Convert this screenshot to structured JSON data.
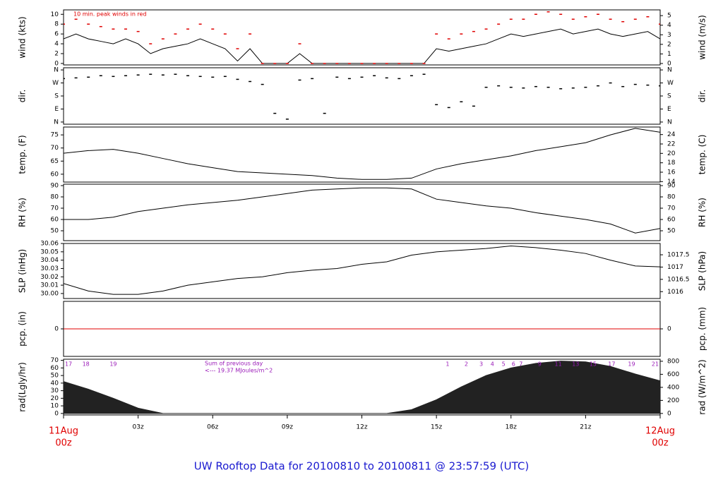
{
  "title": "UW Rooftop Data for 20100810  to  20100811 @ 23:57:59  (UTC)",
  "chart_data": [
    {
      "type": "line",
      "y_label": "wind (kts)",
      "y2_label": "wind (m/s)",
      "annotation": "10 min. peak winds in red",
      "xlim": [
        0,
        24
      ],
      "ylim": [
        -0.3,
        10.9
      ],
      "yticks": [
        0,
        2,
        4,
        6,
        8,
        10
      ],
      "y2lim": [
        -0.15,
        5.6
      ],
      "y2ticks": [
        0,
        1,
        2,
        3,
        4,
        5
      ],
      "x": [
        0,
        0.5,
        1,
        1.5,
        2,
        2.5,
        3,
        3.5,
        4,
        4.5,
        5,
        5.5,
        6,
        6.5,
        7,
        7.5,
        8,
        8.5,
        9,
        9.5,
        10,
        10.5,
        11,
        11.5,
        12,
        12.5,
        13,
        13.5,
        14,
        14.5,
        15,
        15.5,
        16,
        16.5,
        17,
        17.5,
        18,
        18.5,
        19,
        19.5,
        20,
        20.5,
        21,
        21.5,
        22,
        22.5,
        23,
        23.5,
        24
      ],
      "series": [
        {
          "color": "#000000",
          "mark": "line",
          "values": [
            5,
            6,
            5,
            4.5,
            4,
            5,
            4,
            2,
            3,
            3.5,
            4,
            5,
            4,
            3,
            0.5,
            3,
            0,
            0,
            0,
            2,
            0,
            0,
            0,
            0,
            0,
            0,
            0,
            0,
            0,
            0,
            3,
            2.5,
            3,
            3.5,
            4,
            5,
            6,
            5.5,
            6,
            6.5,
            7,
            6,
            6.5,
            7,
            6,
            5.5,
            6,
            6.5,
            5
          ]
        },
        {
          "color": "#e00000",
          "mark": "dash",
          "values": [
            8,
            9,
            8,
            7.5,
            7,
            7,
            6.5,
            4,
            5,
            6,
            7,
            8,
            7,
            6,
            3,
            6,
            0,
            0,
            0,
            4,
            0,
            0,
            0,
            0,
            0,
            0,
            0,
            0,
            0,
            0,
            6,
            5,
            6,
            6.5,
            7,
            8,
            9,
            9,
            10,
            10.5,
            10,
            9,
            9.5,
            10,
            9,
            8.5,
            9,
            9.5,
            8
          ]
        }
      ]
    },
    {
      "type": "scatter",
      "y_label": "dir.",
      "y2_label": "dir.",
      "xlim": [
        0,
        24
      ],
      "ylim": [
        -15,
        375
      ],
      "yticks": [
        {
          "value": 0,
          "label": "N"
        },
        {
          "value": 90,
          "label": "E"
        },
        {
          "value": 180,
          "label": "S"
        },
        {
          "value": 270,
          "label": "W"
        },
        {
          "value": 360,
          "label": "N"
        }
      ],
      "y2lim": [
        -15,
        375
      ],
      "y2ticks": [
        {
          "value": 0,
          "label": "N"
        },
        {
          "value": 90,
          "label": "E"
        },
        {
          "value": 180,
          "label": "S"
        },
        {
          "value": 270,
          "label": "W"
        },
        {
          "value": 360,
          "label": "N"
        }
      ],
      "x": [
        0,
        0.5,
        1,
        1.5,
        2,
        2.5,
        3,
        3.5,
        4,
        4.5,
        5,
        5.5,
        6,
        6.5,
        7,
        7.5,
        8,
        8.5,
        9,
        9.5,
        10,
        10.5,
        11,
        11.5,
        12,
        12.5,
        13,
        13.5,
        14,
        14.5,
        15,
        15.5,
        16,
        16.5,
        17,
        17.5,
        18,
        18.5,
        19,
        19.5,
        20,
        20.5,
        21,
        21.5,
        22,
        22.5,
        23,
        23.5,
        24
      ],
      "series": [
        {
          "color": "#000000",
          "values": [
            300,
            305,
            310,
            320,
            315,
            320,
            325,
            330,
            325,
            330,
            320,
            315,
            310,
            315,
            295,
            280,
            260,
            60,
            20,
            290,
            300,
            60,
            310,
            300,
            310,
            320,
            305,
            300,
            320,
            330,
            120,
            100,
            140,
            110,
            240,
            250,
            240,
            235,
            245,
            240,
            230,
            235,
            240,
            250,
            270,
            245,
            260,
            255,
            250
          ]
        }
      ]
    },
    {
      "type": "line",
      "y_label": "temp. (F)",
      "y2_label": "temp. (C)",
      "xlim": [
        0,
        24
      ],
      "ylim": [
        57,
        78
      ],
      "yticks": [
        60,
        65,
        70,
        75
      ],
      "y2lim": [
        13.9,
        25.6
      ],
      "y2ticks": [
        14,
        16,
        18,
        20,
        22,
        24
      ],
      "x": [
        0,
        1,
        2,
        3,
        4,
        5,
        6,
        7,
        8,
        9,
        10,
        11,
        12,
        13,
        14,
        15,
        16,
        17,
        18,
        19,
        20,
        21,
        22,
        23,
        24
      ],
      "series": [
        {
          "color": "#000000",
          "values": [
            68,
            69,
            69.5,
            68,
            66,
            64,
            62.5,
            61,
            60.5,
            60,
            59.5,
            58.5,
            58,
            58,
            58.5,
            62,
            64,
            65.5,
            67,
            69,
            70.5,
            72,
            75,
            77.5,
            76
          ]
        }
      ]
    },
    {
      "type": "line",
      "y_label": "RH (%)",
      "y2_label": "RH (%)",
      "xlim": [
        0,
        24
      ],
      "ylim": [
        41.25,
        91.25
      ],
      "yticks": [
        50,
        60,
        70,
        80,
        90
      ],
      "y2lim": [
        41.25,
        91.25
      ],
      "y2ticks": [
        50,
        60,
        70,
        80,
        90
      ],
      "x": [
        0,
        1,
        2,
        3,
        4,
        5,
        6,
        7,
        8,
        9,
        10,
        11,
        12,
        13,
        14,
        15,
        16,
        17,
        18,
        19,
        20,
        21,
        22,
        23,
        24
      ],
      "series": [
        {
          "color": "#000000",
          "values": [
            60,
            60,
            62,
            67,
            70,
            73,
            75,
            77,
            80,
            83,
            86,
            87,
            88,
            88,
            87,
            78,
            75,
            72,
            70,
            66,
            63,
            60,
            56,
            48,
            52
          ]
        }
      ]
    },
    {
      "type": "line",
      "y_label": "SLP (inHg)",
      "y2_label": "SLP (hPa)",
      "xlim": [
        0,
        24
      ],
      "ylim": [
        29.994,
        30.06
      ],
      "yticks": [
        {
          "value": 30,
          "label": "30.00"
        },
        30.01,
        30.02,
        30.03,
        30.04,
        30.05,
        30.06
      ],
      "y2lim": [
        1015.72,
        1017.96
      ],
      "y2ticks": [
        1016,
        1016.5,
        1017,
        1017.5
      ],
      "x": [
        0,
        1,
        2,
        3,
        4,
        5,
        6,
        7,
        8,
        9,
        10,
        11,
        12,
        13,
        14,
        15,
        16,
        17,
        18,
        19,
        20,
        21,
        22,
        23,
        24
      ],
      "series": [
        {
          "color": "#000000",
          "values": [
            30.012,
            30.003,
            29.999,
            29.999,
            30.003,
            30.01,
            30.014,
            30.018,
            30.02,
            30.025,
            30.028,
            30.03,
            30.035,
            30.038,
            30.046,
            30.05,
            30.052,
            30.054,
            30.057,
            30.055,
            30.052,
            30.048,
            30.04,
            30.033,
            30.032
          ]
        }
      ]
    },
    {
      "type": "line",
      "y_label": "pcp. (in)",
      "y2_label": "pcp. (mm)",
      "xlim": [
        0,
        24
      ],
      "ylim": [
        -1,
        1
      ],
      "yticks": [
        0
      ],
      "y2lim": [
        -25.4,
        25.4
      ],
      "y2ticks": [
        0
      ],
      "x": [
        0,
        24
      ],
      "series": [
        {
          "color": "#e00000",
          "values": [
            0,
            0
          ]
        }
      ]
    },
    {
      "type": "area",
      "y_label": "rad(Lgly/hr)",
      "y2_label": "rad (W/m^2)",
      "annotations": [
        "Sum of previous day",
        "<--- 19.37 MJoules/m^2"
      ],
      "xlim": [
        0,
        24
      ],
      "ylim": [
        -2,
        71.5
      ],
      "yticks": [
        0,
        10,
        20,
        30,
        40,
        50,
        60,
        70
      ],
      "y2lim": [
        -23.3,
        831.5
      ],
      "y2ticks": [
        0,
        200,
        400,
        600,
        800
      ],
      "xticks": [
        {
          "value": 0,
          "label": "11Aug",
          "sublabel": "00z"
        },
        {
          "value": 3,
          "label": "03z"
        },
        {
          "value": 6,
          "label": "06z"
        },
        {
          "value": 9,
          "label": "09z"
        },
        {
          "value": 12,
          "label": "12z"
        },
        {
          "value": 15,
          "label": "15z"
        },
        {
          "value": 18,
          "label": "18z"
        },
        {
          "value": 21,
          "label": "21z"
        },
        {
          "value": 24,
          "label": "12Aug",
          "sublabel": "00z"
        }
      ],
      "hour_labels": {
        "x": [
          0.2,
          0.9,
          2.0,
          15.45,
          16.2,
          16.8,
          17.25,
          17.7,
          18.1,
          18.4,
          19.15,
          19.9,
          20.6,
          21.3,
          22.05,
          22.85,
          23.8
        ],
        "labels": [
          "17",
          "18",
          "19",
          "1",
          "2",
          "3",
          "4",
          "5",
          "6",
          "7",
          "9",
          "11",
          "13",
          "15",
          "17",
          "19",
          "21"
        ]
      },
      "x": [
        0,
        1,
        2,
        3,
        4,
        5,
        6,
        7,
        8,
        9,
        10,
        11,
        12,
        13,
        14,
        15,
        16,
        17,
        18,
        19,
        20,
        21,
        22,
        23,
        24
      ],
      "series": [
        {
          "color": "#222222",
          "values": [
            42,
            32,
            20,
            7,
            0,
            0,
            0,
            0,
            0,
            0,
            0,
            0,
            0,
            0,
            5,
            18,
            35,
            50,
            60,
            66,
            69,
            68,
            62,
            52,
            43
          ]
        }
      ]
    }
  ]
}
